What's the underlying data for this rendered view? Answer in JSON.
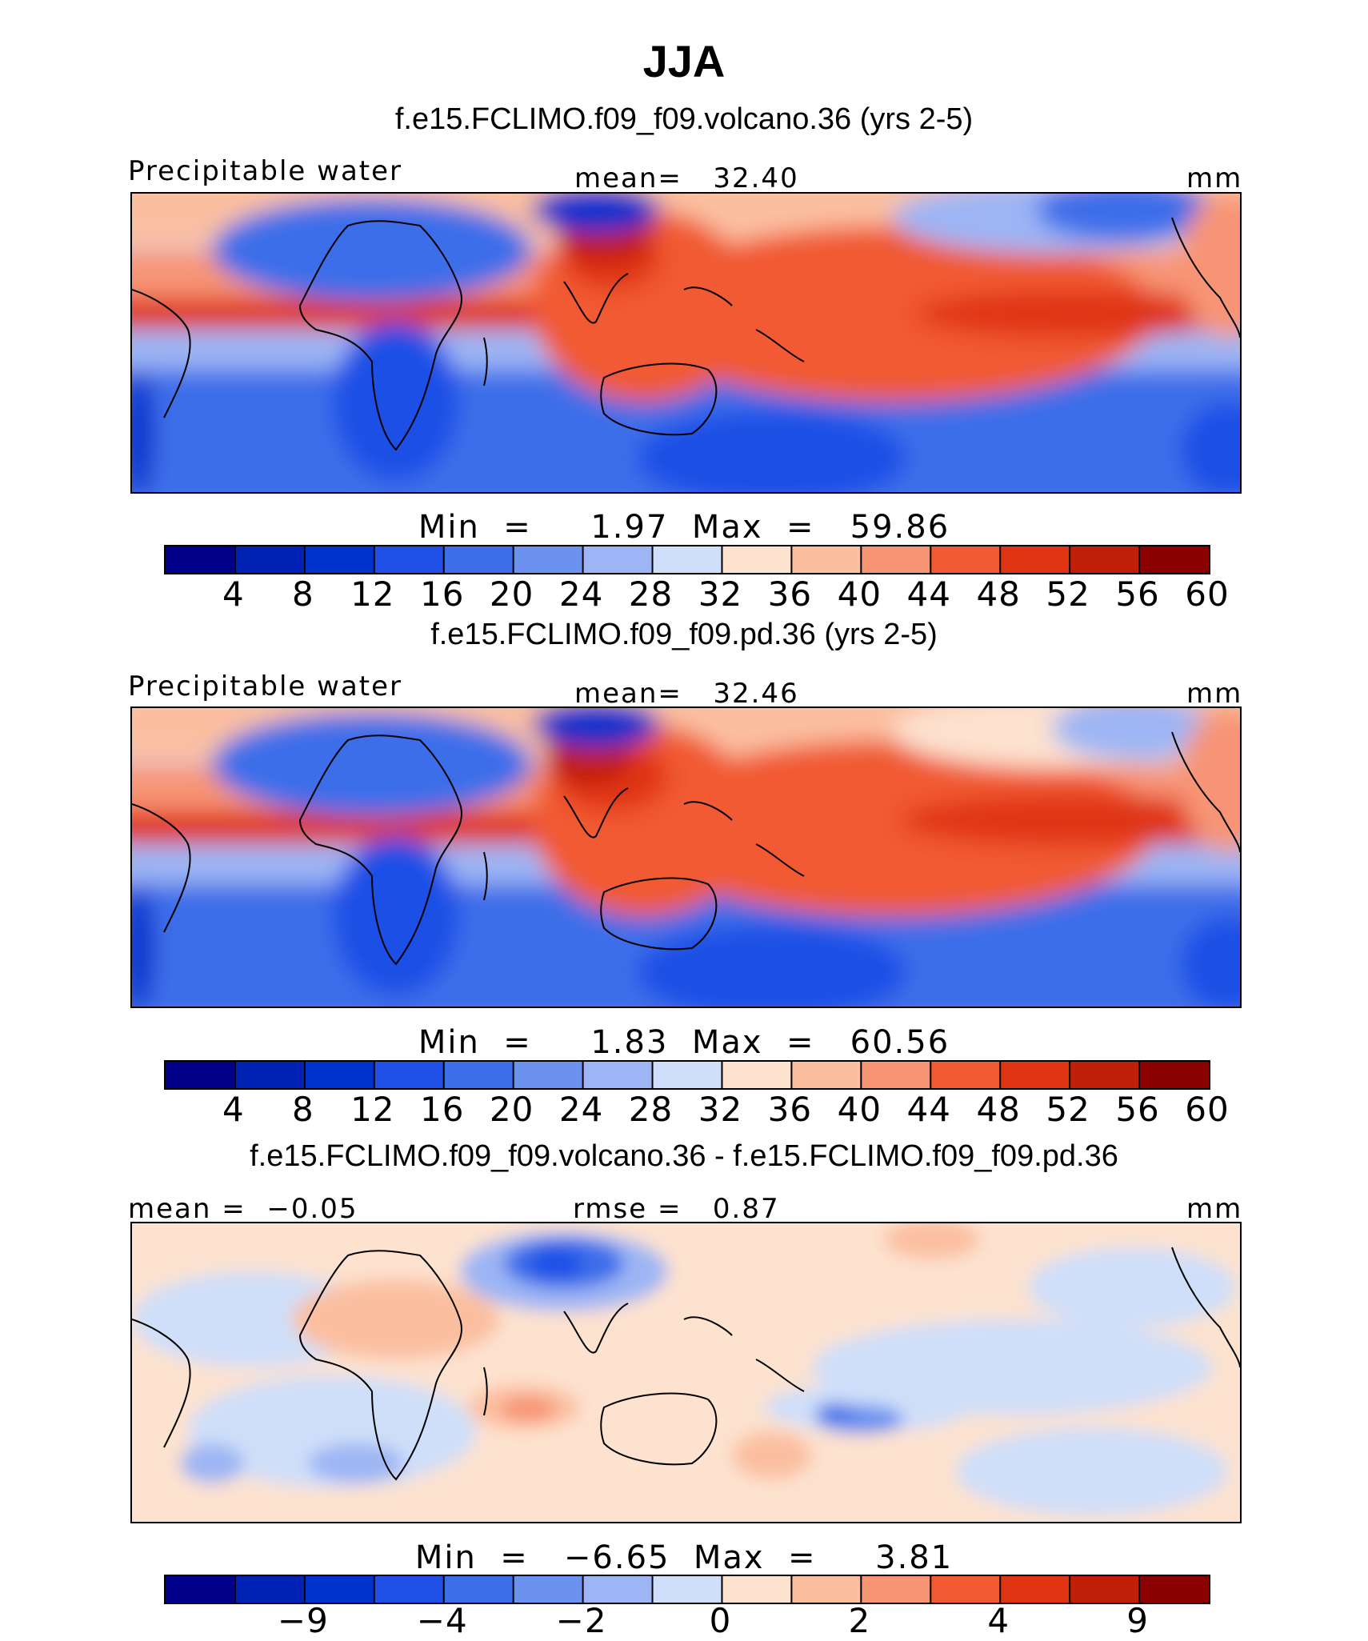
{
  "season": "JJA",
  "chart_data": [
    {
      "type": "heatmap",
      "title": "f.e15.FCLIMO.f09_f09.volcano.36 (yrs 2-5)",
      "variable": "Precipitable water",
      "units": "mm",
      "mean_label": "mean=",
      "mean": "32.40",
      "min_label": "Min  =",
      "min": "1.97",
      "max_label": "Max  =",
      "max": "59.86",
      "colorbar_levels": [
        "4",
        "8",
        "12",
        "16",
        "20",
        "24",
        "28",
        "32",
        "36",
        "40",
        "44",
        "48",
        "52",
        "56",
        "60"
      ],
      "colors": [
        "#00008b",
        "#0022b5",
        "#0033cc",
        "#1f4fe6",
        "#3d6ee9",
        "#6b92ef",
        "#9db5f4",
        "#cfdff9",
        "#fde2cf",
        "#fbbfa0",
        "#f79474",
        "#f15a33",
        "#e03412",
        "#c01e07",
        "#8b0000"
      ]
    },
    {
      "type": "heatmap",
      "title": "f.e15.FCLIMO.f09_f09.pd.36 (yrs 2-5)",
      "variable": "Precipitable water",
      "units": "mm",
      "mean_label": "mean=",
      "mean": "32.46",
      "min_label": "Min  =",
      "min": "1.83",
      "max_label": "Max  =",
      "max": "60.56",
      "colorbar_levels": [
        "4",
        "8",
        "12",
        "16",
        "20",
        "24",
        "28",
        "32",
        "36",
        "40",
        "44",
        "48",
        "52",
        "56",
        "60"
      ],
      "colors": [
        "#00008b",
        "#0022b5",
        "#0033cc",
        "#1f4fe6",
        "#3d6ee9",
        "#6b92ef",
        "#9db5f4",
        "#cfdff9",
        "#fde2cf",
        "#fbbfa0",
        "#f79474",
        "#f15a33",
        "#e03412",
        "#c01e07",
        "#8b0000"
      ]
    },
    {
      "type": "heatmap",
      "title": "f.e15.FCLIMO.f09_f09.volcano.36 - f.e15.FCLIMO.f09_f09.pd.36",
      "units": "mm",
      "mean_label": "mean  =",
      "mean": "−0.05",
      "rmse_label": "rmse  =",
      "rmse": "0.87",
      "min_label": "Min  =",
      "min": "−6.65",
      "max_label": "Max  =",
      "max": "3.81",
      "colorbar_levels": [
        "−9",
        "−4",
        "−2",
        "0",
        "2",
        "4",
        "9"
      ],
      "colors": [
        "#00008b",
        "#0022b5",
        "#0033cc",
        "#1f4fe6",
        "#3d6ee9",
        "#6b92ef",
        "#9db5f4",
        "#cfdff9",
        "#fde2cf",
        "#fbbfa0",
        "#f79474",
        "#f15a33",
        "#e03412",
        "#c01e07",
        "#8b0000"
      ]
    }
  ]
}
